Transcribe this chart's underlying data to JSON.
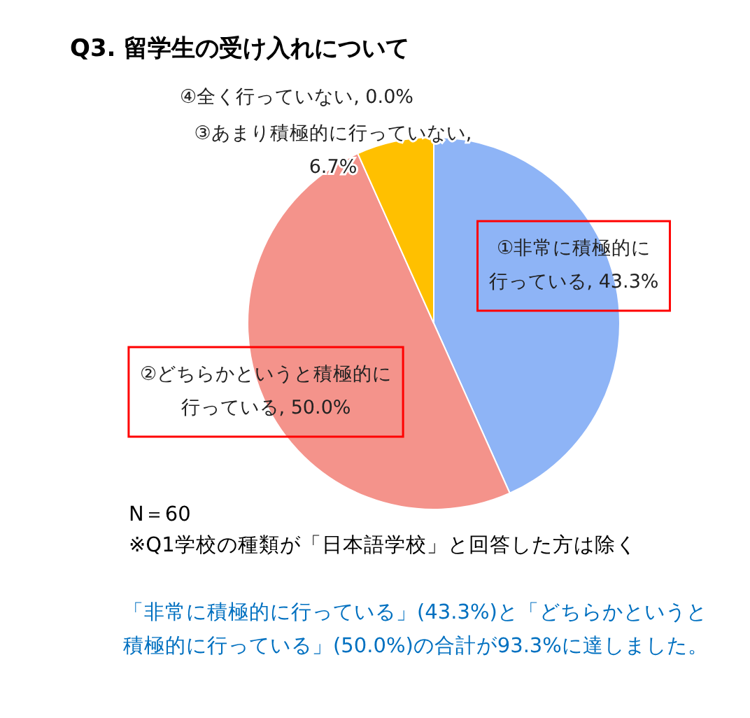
{
  "chart_data": {
    "type": "pie",
    "title": "Q3. 留学生の受け入れについて",
    "categories": [
      "①非常に積極的に行っている, 43.3%",
      "②どちらかというと積極的に行っている, 50.0%",
      "③あまり積極的に行っていない, 6.7%",
      "④全く行っていない, 0.0%"
    ],
    "values": [
      43.3,
      50.0,
      6.7,
      0.0
    ],
    "colors": [
      "#8eb4f6",
      "#f4938b",
      "#ffc000",
      "#7f7f7f"
    ],
    "annotations": [
      "N＝60",
      "※Q1学校の種類が「日本語学校」と回答した方は除く",
      "「非常に積極的に行っている」(43.3%)と「どちらかというと積極的に行っている」(50.0%)の合計が93.3%に達しました。"
    ]
  }
}
